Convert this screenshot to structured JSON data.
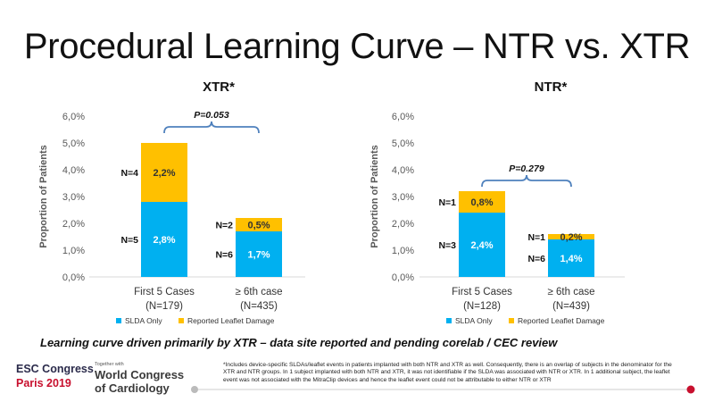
{
  "slide": {
    "title": "Procedural Learning Curve – NTR vs. XTR",
    "caption": "Learning curve driven primarily by XTR – data site reported and pending corelab / CEC review",
    "footnote": "*Includes device-specific SLDAs/leaflet events in patients implanted with both NTR and XTR as well. Consequently, there is an overlap of subjects in the denominator for the XTR and NTR groups. In 1 subject implanted with both NTR and XTR, it was not identifiable if the SLDA was associated with NTR or XTR. In 1 additional subject, the leaflet event was not associated with the MitraClip devices and hence the leaflet event could not be attributable to either NTR or XTR"
  },
  "footer": {
    "esc_line1": "ESC Congress",
    "esc_line2": "Paris 2019",
    "together_with": "Together with",
    "wc_line1": "World Congress",
    "wc_line2": "of Cardiology"
  },
  "colors": {
    "slda": "#00b0f0",
    "leaflet": "#ffc000",
    "bracket": "#4f81bd",
    "axis": "#d9d9d9"
  },
  "chart_data": [
    {
      "type": "bar",
      "stacked": true,
      "title": "XTR*",
      "ylabel": "Proportion of Patients",
      "ylim": [
        0,
        6
      ],
      "yticks": [
        "0,0%",
        "1,0%",
        "2,0%",
        "3,0%",
        "4,0%",
        "5,0%",
        "6,0%"
      ],
      "categories": [
        {
          "line1": "First 5 Cases",
          "line2": "(N=179)"
        },
        {
          "line1": "≥ 6th case",
          "line2": "(N=435)"
        }
      ],
      "series": [
        {
          "name": "SLDA Only",
          "values": [
            2.8,
            1.7
          ],
          "labels": [
            "2,8%",
            "1,7%"
          ],
          "n_labels": [
            "N=5",
            "N=6"
          ]
        },
        {
          "name": "Reported Leaflet Damage",
          "values": [
            2.2,
            0.5
          ],
          "labels": [
            "2,2%",
            "0,5%"
          ],
          "n_labels": [
            "N=4",
            "N=2"
          ]
        }
      ],
      "annotation": {
        "text": "P=0.053",
        "level": 5.6
      },
      "legend": "bottom"
    },
    {
      "type": "bar",
      "stacked": true,
      "title": "NTR*",
      "ylabel": "Proportion of Patients",
      "ylim": [
        0,
        6
      ],
      "yticks": [
        "0,0%",
        "1,0%",
        "2,0%",
        "3,0%",
        "4,0%",
        "5,0%",
        "6,0%"
      ],
      "categories": [
        {
          "line1": "First 5 Cases",
          "line2": "(N=128)"
        },
        {
          "line1": "≥ 6th case",
          "line2": "(N=439)"
        }
      ],
      "series": [
        {
          "name": "SLDA Only",
          "values": [
            2.4,
            1.4
          ],
          "labels": [
            "2,4%",
            "1,4%"
          ],
          "n_labels": [
            "N=3",
            "N=6"
          ]
        },
        {
          "name": "Reported Leaflet Damage",
          "values": [
            0.8,
            0.2
          ],
          "labels": [
            "0,8%",
            "0,2%"
          ],
          "n_labels": [
            "N=1",
            "N=1"
          ]
        }
      ],
      "annotation": {
        "text": "P=0.279",
        "level": 3.6
      },
      "legend": "bottom"
    }
  ]
}
